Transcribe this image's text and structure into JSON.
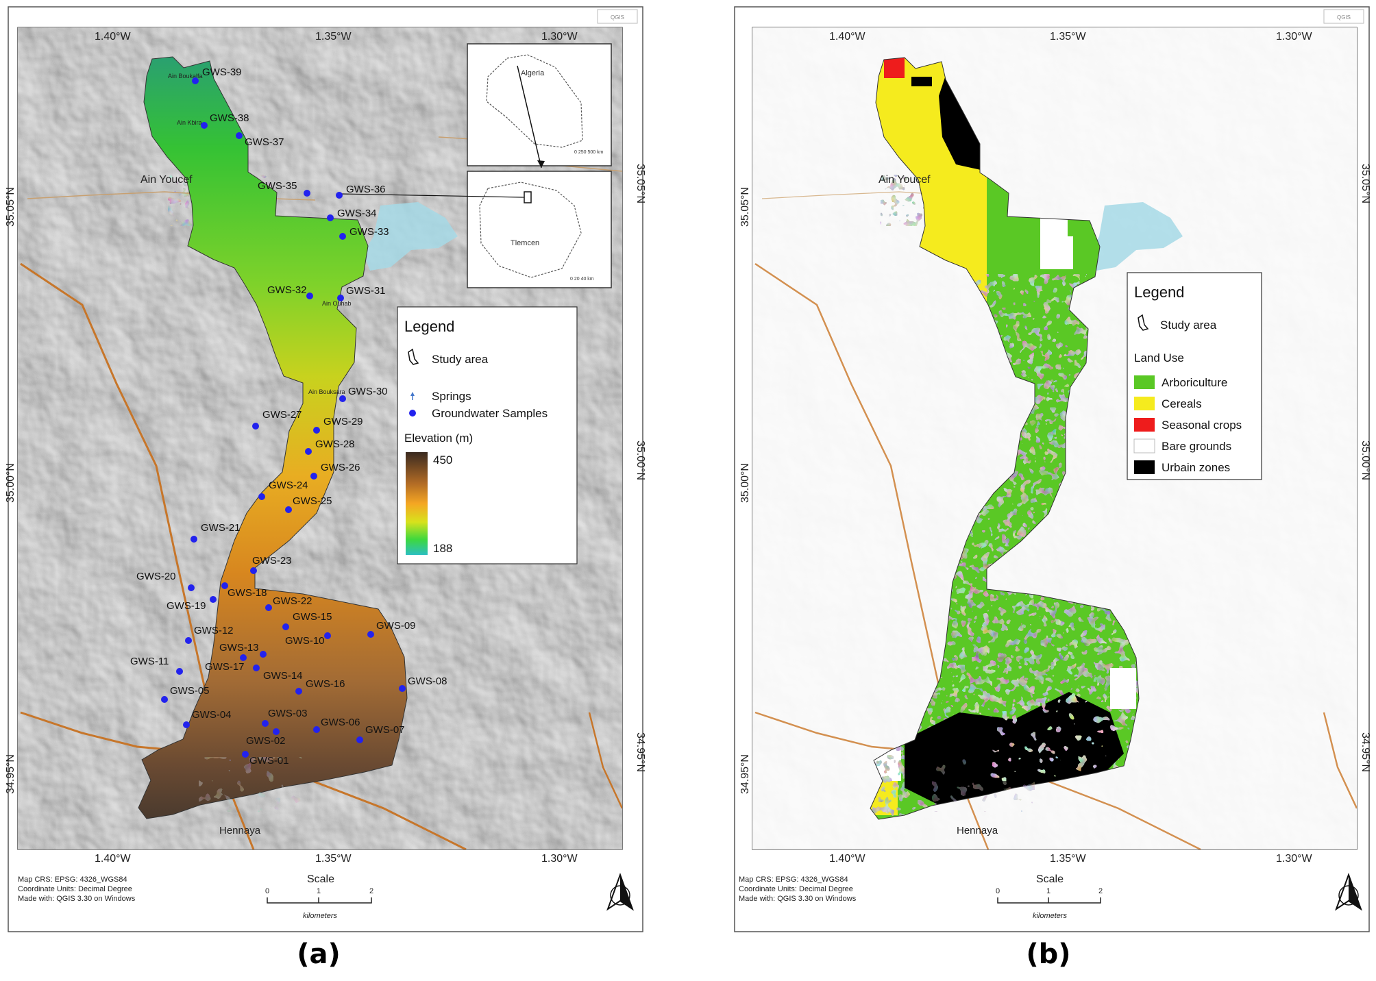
{
  "panel_a": {
    "label": "(a)",
    "lon_labels": [
      "1.40°W",
      "1.35°W",
      "1.30°W"
    ],
    "lat_labels": [
      "35.05°N",
      "35.00°N",
      "34.95°N"
    ],
    "places": {
      "ain_youcef": "Ain Youcef",
      "hennaya": "Hennaya",
      "ain_bouksara": "Ain Bouksara",
      "ain_ouhab": "Ain Ouhab",
      "ain_kbira": "Ain Kbira",
      "ain_boukalfa": "Ain Boukalfa"
    },
    "samples": [
      "GWS-39",
      "GWS-38",
      "GWS-37",
      "GWS-35",
      "GWS-36",
      "GWS-34",
      "GWS-33",
      "GWS-32",
      "GWS-31",
      "GWS-30",
      "GWS-27",
      "GWS-29",
      "GWS-28",
      "GWS-26",
      "GWS-24",
      "GWS-25",
      "GWS-21",
      "GWS-23",
      "GWS-20",
      "GWS-18",
      "GWS-19",
      "GWS-22",
      "GWS-15",
      "GWS-09",
      "GWS-12",
      "GWS-10",
      "GWS-13",
      "GWS-11",
      "GWS-17",
      "GWS-14",
      "GWS-16",
      "GWS-08",
      "GWS-05",
      "GWS-04",
      "GWS-03",
      "GWS-06",
      "GWS-07",
      "GWS-02",
      "GWS-01"
    ],
    "inset": {
      "algeria": "Algeria",
      "tlemcen": "Tlemcen",
      "scale_top": "0 250 500 km",
      "scale_bottom": "0 20 40 km"
    },
    "legend": {
      "title": "Legend",
      "study_area": "Study area",
      "springs": "Springs",
      "samples": "Groundwater Samples",
      "elevation_title": "Elevation (m)",
      "elev_max": "450",
      "elev_min": "188"
    },
    "footer": {
      "crs": "Map CRS: EPSG: 4326_WGS84",
      "units": "Coordinate Units: Decimal Degree",
      "made": "Made with: QGIS 3.30 on Windows"
    },
    "scale": {
      "title": "Scale",
      "t0": "0",
      "t1": "1",
      "t2": "2",
      "unit": "kilometers"
    }
  },
  "panel_b": {
    "label": "(b)",
    "lon_labels": [
      "1.40°W",
      "1.35°W",
      "1.30°W"
    ],
    "lat_labels": [
      "35.05°N",
      "35.00°N",
      "34.95°N"
    ],
    "places": {
      "ain_youcef": "Ain Youcef",
      "hennaya": "Hennaya"
    },
    "legend": {
      "title": "Legend",
      "study_area": "Study area",
      "land_use_title": "Land Use",
      "classes": [
        {
          "name": "Arboriculture",
          "color": "#5ac825"
        },
        {
          "name": "Cereals",
          "color": "#f5eb1e"
        },
        {
          "name": "Seasonal crops",
          "color": "#ee1c1c"
        },
        {
          "name": "Bare grounds",
          "color": "#ffffff"
        },
        {
          "name": "Urbain zones",
          "color": "#000000"
        }
      ]
    },
    "footer": {
      "crs": "Map CRS: EPSG: 4326_WGS84",
      "units": "Coordinate Units: Decimal Degree",
      "made": "Made with: QGIS 3.30 on Windows"
    },
    "scale": {
      "title": "Scale",
      "t0": "0",
      "t1": "1",
      "t2": "2",
      "unit": "kilometers"
    }
  },
  "colors": {
    "elevation_ramp": [
      "#2bbfae",
      "#44d444",
      "#cfe01c",
      "#f5a623",
      "#a66a30",
      "#3a2a20"
    ],
    "sample_point": "#2222ee",
    "water": "#a6d9e6"
  }
}
